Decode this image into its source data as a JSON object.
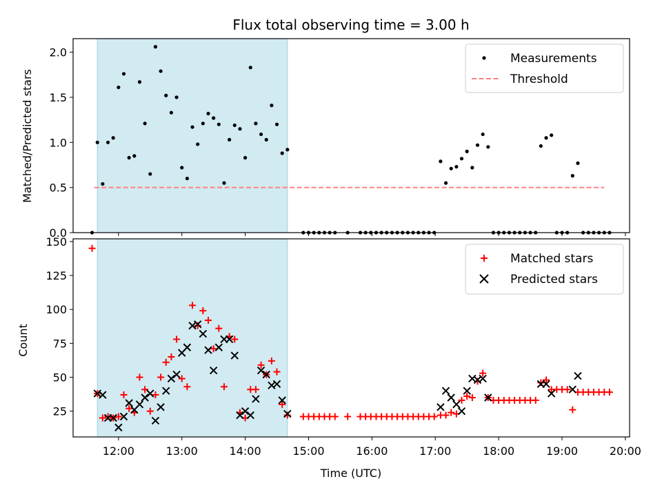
{
  "chart_data": [
    {
      "type": "scatter",
      "title": "Flux total observing time = 3.00 h",
      "xlabel": "",
      "ylabel": "Matched/Predicted stars",
      "xlim": [
        "11:17",
        "20:04"
      ],
      "ylim": [
        0,
        2.15
      ],
      "yticks": [
        0.0,
        0.5,
        1.0,
        1.5,
        2.0
      ],
      "ytick_labels": [
        "0.0",
        "0.5",
        "1.0",
        "1.5",
        "2.0"
      ],
      "shaded_span": [
        "11:40",
        "14:40"
      ],
      "shaded_color": "#add8e6",
      "legend_position": "upper right",
      "series": [
        {
          "name": "Measurements",
          "style": "dot",
          "color": "#000000",
          "points": [
            [
              "11:35",
              0
            ],
            [
              "11:40",
              1.0
            ],
            [
              "11:45",
              0.54
            ],
            [
              "11:50",
              1.0
            ],
            [
              "11:55",
              1.05
            ],
            [
              "12:00",
              1.61
            ],
            [
              "12:05",
              1.76
            ],
            [
              "12:10",
              0.83
            ],
            [
              "12:15",
              0.85
            ],
            [
              "12:20",
              1.67
            ],
            [
              "12:25",
              1.21
            ],
            [
              "12:30",
              0.65
            ],
            [
              "12:35",
              2.06
            ],
            [
              "12:40",
              1.79
            ],
            [
              "12:45",
              1.52
            ],
            [
              "12:50",
              1.33
            ],
            [
              "12:55",
              1.5
            ],
            [
              "13:00",
              0.72
            ],
            [
              "13:05",
              0.6
            ],
            [
              "13:10",
              1.17
            ],
            [
              "13:15",
              0.98
            ],
            [
              "13:20",
              1.21
            ],
            [
              "13:25",
              1.32
            ],
            [
              "13:30",
              1.27
            ],
            [
              "13:35",
              1.2
            ],
            [
              "13:40",
              0.55
            ],
            [
              "13:45",
              1.03
            ],
            [
              "13:50",
              1.19
            ],
            [
              "13:55",
              1.15
            ],
            [
              "14:00",
              0.83
            ],
            [
              "14:05",
              1.83
            ],
            [
              "14:10",
              1.21
            ],
            [
              "14:15",
              1.09
            ],
            [
              "14:20",
              1.03
            ],
            [
              "14:25",
              1.41
            ],
            [
              "14:30",
              1.2
            ],
            [
              "14:35",
              0.88
            ],
            [
              "14:40",
              0.92
            ],
            [
              "14:55",
              0
            ],
            [
              "15:00",
              0
            ],
            [
              "15:05",
              0
            ],
            [
              "15:10",
              0
            ],
            [
              "15:15",
              0
            ],
            [
              "15:20",
              0
            ],
            [
              "15:25",
              0
            ],
            [
              "15:37",
              0
            ],
            [
              "15:49",
              0
            ],
            [
              "15:54",
              0
            ],
            [
              "15:59",
              0
            ],
            [
              "16:04",
              0
            ],
            [
              "16:09",
              0
            ],
            [
              "16:14",
              0
            ],
            [
              "16:19",
              0
            ],
            [
              "16:24",
              0
            ],
            [
              "16:29",
              0
            ],
            [
              "16:34",
              0
            ],
            [
              "16:39",
              0
            ],
            [
              "16:44",
              0
            ],
            [
              "16:49",
              0
            ],
            [
              "16:54",
              0
            ],
            [
              "16:59",
              0
            ],
            [
              "17:05",
              0.79
            ],
            [
              "17:10",
              0.55
            ],
            [
              "17:15",
              0.71
            ],
            [
              "17:20",
              0.73
            ],
            [
              "17:25",
              0.82
            ],
            [
              "17:30",
              0.9
            ],
            [
              "17:35",
              0.72
            ],
            [
              "17:40",
              0.97
            ],
            [
              "17:45",
              1.09
            ],
            [
              "17:50",
              0.95
            ],
            [
              "17:55",
              0
            ],
            [
              "18:00",
              0
            ],
            [
              "18:05",
              0
            ],
            [
              "18:10",
              0
            ],
            [
              "18:15",
              0
            ],
            [
              "18:20",
              0
            ],
            [
              "18:25",
              0
            ],
            [
              "18:30",
              0
            ],
            [
              "18:35",
              0
            ],
            [
              "18:40",
              0.96
            ],
            [
              "18:45",
              1.05
            ],
            [
              "18:50",
              1.08
            ],
            [
              "18:55",
              0
            ],
            [
              "19:00",
              0
            ],
            [
              "19:05",
              0
            ],
            [
              "19:10",
              0.63
            ],
            [
              "19:15",
              0.77
            ],
            [
              "19:20",
              0
            ],
            [
              "19:25",
              0
            ],
            [
              "19:30",
              0
            ],
            [
              "19:35",
              0
            ],
            [
              "19:40",
              0
            ],
            [
              "19:45",
              0
            ]
          ]
        },
        {
          "name": "Threshold",
          "style": "dashed-line",
          "color": "#ff7f7f",
          "points": [
            [
              "11:37",
              0.5
            ],
            [
              "19:40",
              0.5
            ]
          ]
        }
      ]
    },
    {
      "type": "scatter",
      "title": "",
      "xlabel": "Time (UTC)",
      "ylabel": "Count",
      "xlim": [
        "11:17",
        "20:04"
      ],
      "ylim": [
        6,
        152
      ],
      "xticks": [
        "12:00",
        "13:00",
        "14:00",
        "15:00",
        "16:00",
        "17:00",
        "18:00",
        "19:00",
        "20:00"
      ],
      "yticks": [
        25,
        50,
        75,
        100,
        125,
        150
      ],
      "ytick_labels": [
        "25",
        "50",
        "75",
        "100",
        "125",
        "150"
      ],
      "shaded_span": [
        "11:40",
        "14:40"
      ],
      "shaded_color": "#add8e6",
      "legend_position": "upper right",
      "series": [
        {
          "name": "Matched stars",
          "style": "plus",
          "color": "#ff0000",
          "points": [
            [
              "11:35",
              145
            ],
            [
              "11:40",
              38
            ],
            [
              "11:45",
              20
            ],
            [
              "11:50",
              21
            ],
            [
              "11:55",
              20
            ],
            [
              "12:00",
              21
            ],
            [
              "12:05",
              37
            ],
            [
              "12:10",
              27
            ],
            [
              "12:15",
              24
            ],
            [
              "12:20",
              50
            ],
            [
              "12:25",
              41
            ],
            [
              "12:30",
              25
            ],
            [
              "12:35",
              37
            ],
            [
              "12:40",
              50
            ],
            [
              "12:45",
              61
            ],
            [
              "12:50",
              65
            ],
            [
              "12:55",
              78
            ],
            [
              "13:00",
              49
            ],
            [
              "13:05",
              43
            ],
            [
              "13:10",
              103
            ],
            [
              "13:15",
              88
            ],
            [
              "13:20",
              99
            ],
            [
              "13:25",
              92
            ],
            [
              "13:30",
              71
            ],
            [
              "13:35",
              86
            ],
            [
              "13:40",
              43
            ],
            [
              "13:45",
              80
            ],
            [
              "13:50",
              78
            ],
            [
              "13:55",
              24
            ],
            [
              "14:00",
              20
            ],
            [
              "14:05",
              41
            ],
            [
              "14:10",
              41
            ],
            [
              "14:15",
              59
            ],
            [
              "14:20",
              52
            ],
            [
              "14:25",
              62
            ],
            [
              "14:30",
              54
            ],
            [
              "14:35",
              30
            ],
            [
              "14:40",
              22
            ],
            [
              "14:55",
              21
            ],
            [
              "15:00",
              21
            ],
            [
              "15:05",
              21
            ],
            [
              "15:10",
              21
            ],
            [
              "15:15",
              21
            ],
            [
              "15:20",
              21
            ],
            [
              "15:25",
              21
            ],
            [
              "15:37",
              21
            ],
            [
              "15:49",
              21
            ],
            [
              "15:54",
              21
            ],
            [
              "15:59",
              21
            ],
            [
              "16:04",
              21
            ],
            [
              "16:09",
              21
            ],
            [
              "16:14",
              21
            ],
            [
              "16:19",
              21
            ],
            [
              "16:24",
              21
            ],
            [
              "16:29",
              21
            ],
            [
              "16:34",
              21
            ],
            [
              "16:39",
              21
            ],
            [
              "16:44",
              21
            ],
            [
              "16:49",
              21
            ],
            [
              "16:54",
              21
            ],
            [
              "16:59",
              21
            ],
            [
              "17:05",
              22
            ],
            [
              "17:10",
              22
            ],
            [
              "17:15",
              24
            ],
            [
              "17:20",
              23
            ],
            [
              "17:25",
              33
            ],
            [
              "17:30",
              36
            ],
            [
              "17:35",
              35
            ],
            [
              "17:40",
              47
            ],
            [
              "17:45",
              53
            ],
            [
              "17:50",
              35
            ],
            [
              "17:55",
              33
            ],
            [
              "18:00",
              33
            ],
            [
              "18:05",
              33
            ],
            [
              "18:10",
              33
            ],
            [
              "18:15",
              33
            ],
            [
              "18:20",
              33
            ],
            [
              "18:25",
              33
            ],
            [
              "18:30",
              33
            ],
            [
              "18:35",
              33
            ],
            [
              "18:40",
              46
            ],
            [
              "18:45",
              48
            ],
            [
              "18:50",
              41
            ],
            [
              "18:55",
              41
            ],
            [
              "19:00",
              41
            ],
            [
              "19:05",
              41
            ],
            [
              "19:10",
              26
            ],
            [
              "19:15",
              39
            ],
            [
              "19:20",
              39
            ],
            [
              "19:25",
              39
            ],
            [
              "19:30",
              39
            ],
            [
              "19:35",
              39
            ],
            [
              "19:40",
              39
            ],
            [
              "19:45",
              39
            ]
          ]
        },
        {
          "name": "Predicted stars",
          "style": "x",
          "color": "#000000",
          "points": [
            [
              "11:40",
              38
            ],
            [
              "11:45",
              37
            ],
            [
              "11:50",
              20
            ],
            [
              "11:55",
              20
            ],
            [
              "12:00",
              13
            ],
            [
              "12:05",
              21
            ],
            [
              "12:10",
              31
            ],
            [
              "12:15",
              26
            ],
            [
              "12:20",
              30
            ],
            [
              "12:25",
              35
            ],
            [
              "12:30",
              38
            ],
            [
              "12:35",
              18
            ],
            [
              "12:40",
              28
            ],
            [
              "12:45",
              40
            ],
            [
              "12:50",
              49
            ],
            [
              "12:55",
              52
            ],
            [
              "13:00",
              68
            ],
            [
              "13:05",
              72
            ],
            [
              "13:10",
              88
            ],
            [
              "13:15",
              89
            ],
            [
              "13:20",
              82
            ],
            [
              "13:25",
              70
            ],
            [
              "13:30",
              55
            ],
            [
              "13:35",
              72
            ],
            [
              "13:40",
              78
            ],
            [
              "13:45",
              78
            ],
            [
              "13:50",
              66
            ],
            [
              "13:55",
              22
            ],
            [
              "14:00",
              25
            ],
            [
              "14:05",
              22
            ],
            [
              "14:10",
              34
            ],
            [
              "14:15",
              55
            ],
            [
              "14:20",
              52
            ],
            [
              "14:25",
              44
            ],
            [
              "14:30",
              45
            ],
            [
              "14:35",
              33
            ],
            [
              "14:40",
              23
            ],
            [
              "17:05",
              28
            ],
            [
              "17:10",
              40
            ],
            [
              "17:15",
              35
            ],
            [
              "17:20",
              30
            ],
            [
              "17:25",
              25
            ],
            [
              "17:30",
              40
            ],
            [
              "17:35",
              49
            ],
            [
              "17:40",
              48
            ],
            [
              "17:45",
              49
            ],
            [
              "17:50",
              35
            ],
            [
              "18:40",
              45
            ],
            [
              "18:45",
              45
            ],
            [
              "18:50",
              38
            ],
            [
              "19:10",
              41
            ],
            [
              "19:15",
              51
            ]
          ]
        }
      ]
    }
  ]
}
